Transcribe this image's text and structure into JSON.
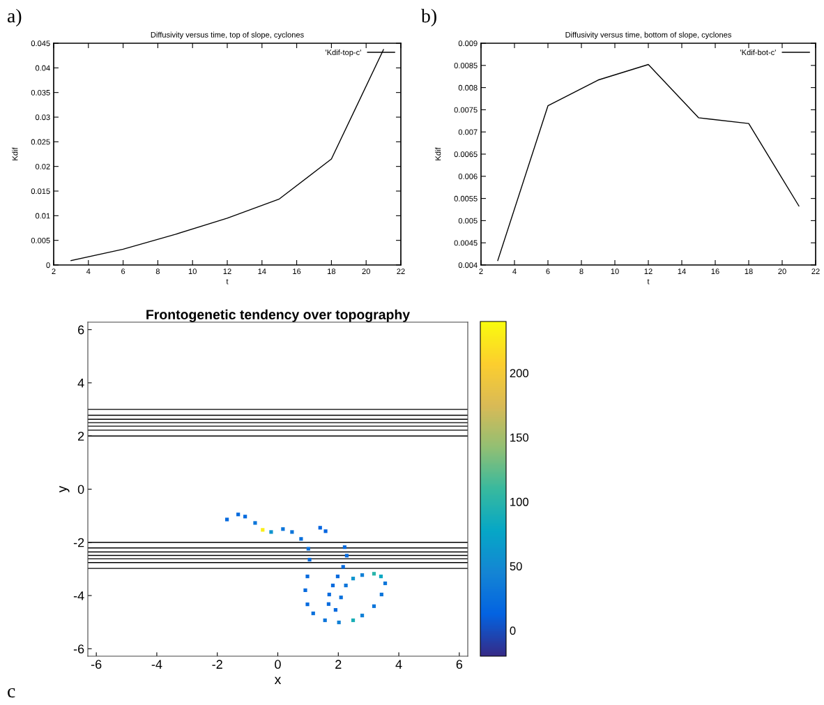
{
  "chart_data": [
    {
      "type": "line",
      "title": "Diffusivity versus time, top of slope, cyclones",
      "xlabel": "t",
      "ylabel": "Kdif",
      "annotations": [
        "a)"
      ],
      "x": [
        3,
        6,
        9,
        12,
        15,
        18,
        21
      ],
      "series": [
        {
          "name": "'Kdif-top-c'",
          "color": "#000000",
          "values": [
            0.0009,
            0.0032,
            0.0062,
            0.0095,
            0.0134,
            0.0215,
            0.0437
          ]
        }
      ],
      "xlim": [
        2,
        22
      ],
      "xticks": [
        2,
        4,
        6,
        8,
        10,
        12,
        14,
        16,
        18,
        20,
        22
      ],
      "ylim": [
        0,
        0.045
      ],
      "yticks": [
        0,
        0.005,
        0.01,
        0.015,
        0.02,
        0.025,
        0.03,
        0.035,
        0.04,
        0.045
      ],
      "grid": false,
      "legend": "top right"
    },
    {
      "type": "line",
      "title": "Diffusivity versus time, bottom of slope, cyclones",
      "xlabel": "t",
      "ylabel": "Kdif",
      "annotations": [
        "b)"
      ],
      "x": [
        3,
        6,
        9,
        12,
        15,
        18,
        21
      ],
      "series": [
        {
          "name": "'Kdif-bot-c'",
          "color": "#000000",
          "values": [
            0.0041,
            0.00759,
            0.00817,
            0.00852,
            0.00732,
            0.00719,
            0.00533
          ]
        }
      ],
      "xlim": [
        2,
        22
      ],
      "xticks": [
        2,
        4,
        6,
        8,
        10,
        12,
        14,
        16,
        18,
        20,
        22
      ],
      "ylim": [
        0.004,
        0.009
      ],
      "yticks": [
        0.004,
        0.0045,
        0.005,
        0.0055,
        0.006,
        0.0065,
        0.007,
        0.0075,
        0.008,
        0.0085,
        0.009
      ],
      "grid": false,
      "legend": "top right"
    },
    {
      "type": "scatter",
      "title": "Frontogenetic tendency over topography",
      "xlabel": "x",
      "ylabel": "y",
      "annotations": [
        "c"
      ],
      "x": [
        -1.68,
        -1.31,
        -1.08,
        -0.75,
        -0.5,
        -0.22,
        0.17,
        0.47,
        0.77,
        1.01,
        1.05,
        0.98,
        0.91,
        0.98,
        1.17,
        1.56,
        2.02,
        2.49,
        2.79,
        3.18,
        3.43,
        3.55,
        3.41,
        3.18,
        2.79,
        2.49,
        2.25,
        2.09,
        2.21,
        2.28,
        2.16,
        1.98,
        1.82,
        1.7,
        1.68,
        1.91,
        1.4,
        1.58
      ],
      "values": [
        -1.14,
        -0.95,
        -1.03,
        -1.27,
        -1.53,
        -1.61,
        -1.5,
        -1.61,
        -1.87,
        -2.24,
        -2.65,
        -3.28,
        -3.8,
        -4.33,
        -4.67,
        -4.93,
        -5.01,
        -4.93,
        -4.75,
        -4.4,
        -3.96,
        -3.54,
        -3.28,
        -3.18,
        -3.23,
        -3.36,
        -3.62,
        -4.07,
        -2.18,
        -2.5,
        -2.92,
        -3.28,
        -3.62,
        -3.96,
        -4.32,
        -4.54,
        -1.45,
        -1.58
      ],
      "cvalues": [
        20,
        20,
        20,
        30,
        230,
        60,
        30,
        30,
        25,
        25,
        20,
        20,
        20,
        20,
        25,
        30,
        40,
        90,
        40,
        30,
        30,
        30,
        80,
        100,
        40,
        60,
        30,
        25,
        20,
        20,
        20,
        20,
        20,
        20,
        20,
        20,
        15,
        15
      ],
      "xlim": [
        -6.28,
        6.28
      ],
      "xticks": [
        -6,
        -4,
        -2,
        0,
        2,
        4,
        6
      ],
      "ylim": [
        -6.28,
        6.28
      ],
      "yticks": [
        -6,
        -4,
        -2,
        0,
        2,
        4,
        6
      ],
      "clim": [
        -20,
        240
      ],
      "cticks": [
        0,
        50,
        100,
        150,
        200
      ],
      "marker": "square",
      "grid": false,
      "legend": false,
      "ref_lines": [
        {
          "axis": "y",
          "value": 2.0,
          "color": "#000000"
        },
        {
          "axis": "y",
          "value": 2.22,
          "color": "#000000"
        },
        {
          "axis": "y",
          "value": 2.37,
          "color": "#000000"
        },
        {
          "axis": "y",
          "value": 2.5,
          "color": "#000000"
        },
        {
          "axis": "y",
          "value": 2.63,
          "color": "#000000"
        },
        {
          "axis": "y",
          "value": 2.78,
          "color": "#000000"
        },
        {
          "axis": "y",
          "value": 3.0,
          "color": "#000000"
        },
        {
          "axis": "y",
          "value": -2.0,
          "color": "#000000"
        },
        {
          "axis": "y",
          "value": -2.21,
          "color": "#000000"
        },
        {
          "axis": "y",
          "value": -2.36,
          "color": "#000000"
        },
        {
          "axis": "y",
          "value": -2.49,
          "color": "#000000"
        },
        {
          "axis": "y",
          "value": -2.62,
          "color": "#000000"
        },
        {
          "axis": "y",
          "value": -2.76,
          "color": "#000000"
        },
        {
          "axis": "y",
          "value": -2.98,
          "color": "#000000"
        }
      ]
    }
  ]
}
